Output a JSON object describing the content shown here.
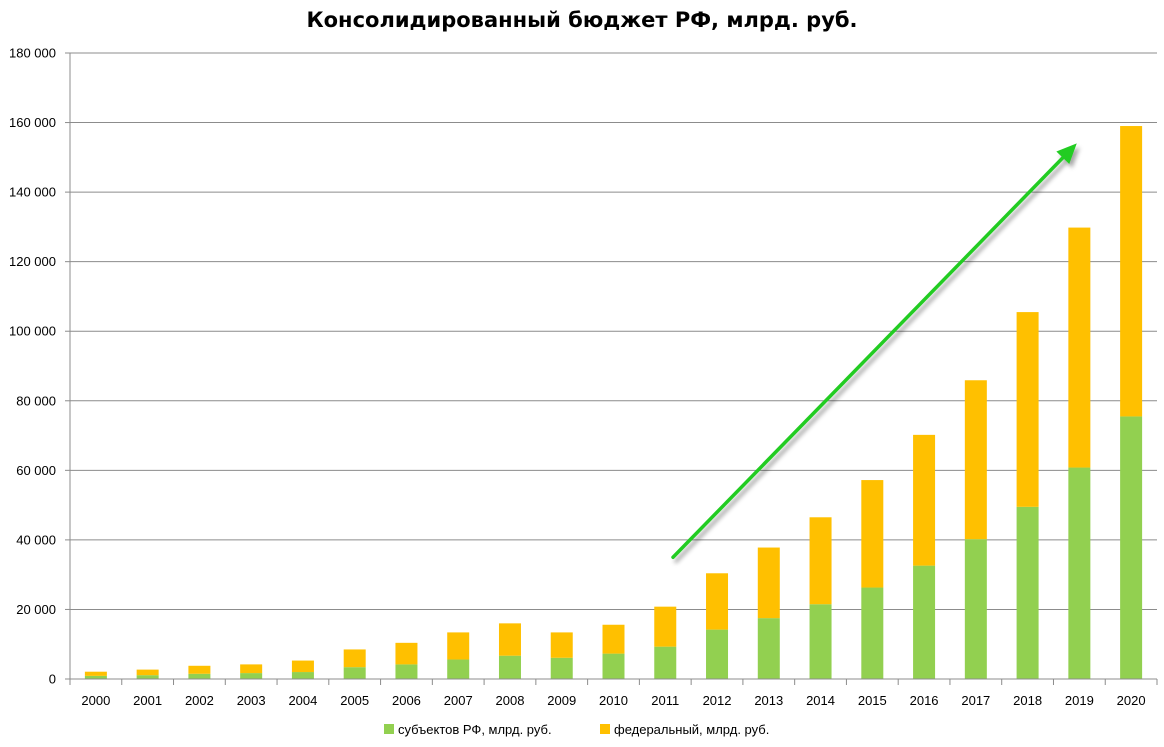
{
  "chart_data": {
    "type": "bar",
    "stacked": true,
    "title": "Консолидированный бюджет РФ, млрд. руб.",
    "xlabel": "",
    "ylabel": "",
    "ylim": [
      0,
      180000
    ],
    "yticks": [
      0,
      20000,
      40000,
      60000,
      80000,
      100000,
      120000,
      140000,
      160000,
      180000
    ],
    "ytick_labels": [
      "0",
      "20 000",
      "40 000",
      "60 000",
      "80 000",
      "100 000",
      "120 000",
      "140 000",
      "160 000",
      "180 000"
    ],
    "categories": [
      "2000",
      "2001",
      "2002",
      "2003",
      "2004",
      "2005",
      "2006",
      "2007",
      "2008",
      "2009",
      "2010",
      "2011",
      "2012",
      "2013",
      "2014",
      "2015",
      "2016",
      "2017",
      "2018",
      "2019",
      "2020"
    ],
    "series": [
      {
        "name": "субъектов РФ, млрд. руб.",
        "color": "#92d050",
        "values": [
          900,
          1100,
          1500,
          1700,
          2000,
          3400,
          4200,
          5600,
          6700,
          6100,
          7300,
          9300,
          14200,
          17500,
          21500,
          26300,
          32600,
          40200,
          49500,
          60800,
          75500
        ]
      },
      {
        "name": "федеральный, млрд. руб.",
        "color": "#ffc000",
        "values": [
          1200,
          1600,
          2300,
          2500,
          3300,
          5100,
          6200,
          7800,
          9300,
          7300,
          8300,
          11500,
          16200,
          20300,
          25000,
          30900,
          37600,
          45700,
          56000,
          69000,
          83500
        ]
      }
    ],
    "legend_position": "bottom",
    "grid": true,
    "annotations": [
      {
        "type": "arrow",
        "color": "#22cc22",
        "from": {
          "x": "2011",
          "y": 35000
        },
        "to": {
          "x": "2019",
          "y": 154000
        }
      }
    ]
  }
}
